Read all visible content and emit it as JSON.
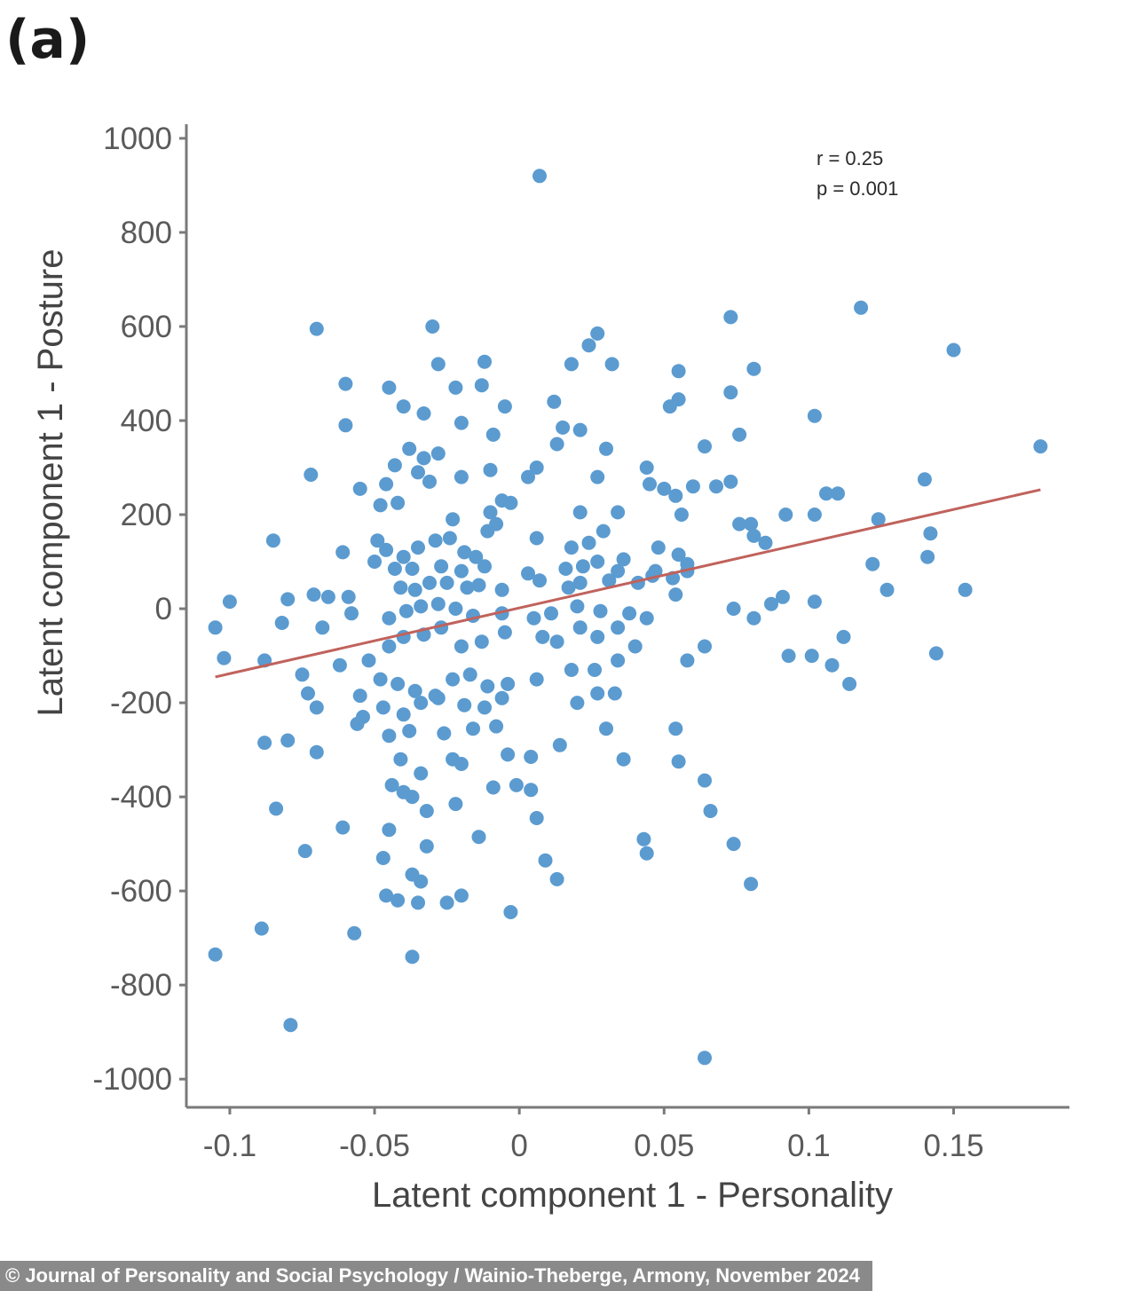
{
  "panel_label": "(a)",
  "credit": "© Journal of Personality and Social Psychology / Wainio-Theberge, Armony, November 2024",
  "chart_data": {
    "type": "scatter",
    "title": "",
    "xlabel": "Latent component 1 - Personality",
    "ylabel": "Latent component 1 - Posture",
    "xlim": [
      -0.115,
      0.19
    ],
    "ylim": [
      -1060,
      1030
    ],
    "x_ticks": [
      -0.1,
      -0.05,
      0,
      0.05,
      0.1,
      0.15
    ],
    "x_tick_labels": [
      "-0.1",
      "-0.05",
      "0",
      "0.05",
      "0.1",
      "0.15"
    ],
    "y_ticks": [
      1000,
      800,
      600,
      400,
      200,
      0,
      -200,
      -400,
      -600,
      -800,
      -1000
    ],
    "y_tick_labels": [
      "1000",
      "800",
      "600",
      "400",
      "200",
      "0",
      "-200",
      "-400",
      "-600",
      "-800",
      "-1000"
    ],
    "grid": false,
    "stats": [
      "r = 0.25",
      "p = 0.001"
    ],
    "point_color": "#5b9bd0",
    "line_color": "#c0625c",
    "regression_line": {
      "x": [
        -0.105,
        0.18
      ],
      "y": [
        -145,
        253
      ]
    },
    "points": [
      [
        0.007,
        920
      ],
      [
        -0.07,
        595
      ],
      [
        -0.03,
        600
      ],
      [
        0.073,
        620
      ],
      [
        0.118,
        640
      ],
      [
        0.15,
        550
      ],
      [
        0.027,
        585
      ],
      [
        0.024,
        560
      ],
      [
        0.032,
        520
      ],
      [
        -0.028,
        520
      ],
      [
        -0.012,
        525
      ],
      [
        0.018,
        520
      ],
      [
        0.055,
        505
      ],
      [
        0.081,
        510
      ],
      [
        -0.06,
        478
      ],
      [
        -0.045,
        470
      ],
      [
        -0.022,
        470
      ],
      [
        -0.013,
        475
      ],
      [
        0.012,
        440
      ],
      [
        0.055,
        445
      ],
      [
        0.073,
        460
      ],
      [
        -0.04,
        430
      ],
      [
        -0.033,
        415
      ],
      [
        -0.005,
        430
      ],
      [
        0.052,
        430
      ],
      [
        0.102,
        410
      ],
      [
        -0.06,
        390
      ],
      [
        -0.02,
        395
      ],
      [
        0.015,
        385
      ],
      [
        0.021,
        380
      ],
      [
        0.076,
        370
      ],
      [
        -0.009,
        370
      ],
      [
        -0.038,
        340
      ],
      [
        -0.033,
        320
      ],
      [
        -0.028,
        330
      ],
      [
        0.013,
        350
      ],
      [
        0.03,
        340
      ],
      [
        0.064,
        345
      ],
      [
        0.18,
        345
      ],
      [
        -0.043,
        305
      ],
      [
        -0.035,
        290
      ],
      [
        -0.02,
        280
      ],
      [
        0.006,
        300
      ],
      [
        0.027,
        280
      ],
      [
        0.044,
        300
      ],
      [
        -0.072,
        285
      ],
      [
        -0.055,
        255
      ],
      [
        -0.046,
        265
      ],
      [
        -0.031,
        270
      ],
      [
        -0.01,
        295
      ],
      [
        0.003,
        280
      ],
      [
        0.045,
        265
      ],
      [
        0.05,
        255
      ],
      [
        0.06,
        260
      ],
      [
        0.068,
        260
      ],
      [
        0.073,
        270
      ],
      [
        0.14,
        275
      ],
      [
        -0.048,
        220
      ],
      [
        -0.042,
        225
      ],
      [
        -0.023,
        190
      ],
      [
        -0.01,
        205
      ],
      [
        -0.006,
        230
      ],
      [
        -0.003,
        225
      ],
      [
        0.021,
        205
      ],
      [
        0.034,
        205
      ],
      [
        0.054,
        240
      ],
      [
        0.056,
        200
      ],
      [
        0.076,
        180
      ],
      [
        0.08,
        180
      ],
      [
        0.092,
        200
      ],
      [
        0.102,
        200
      ],
      [
        0.106,
        245
      ],
      [
        0.11,
        245
      ],
      [
        0.124,
        190
      ],
      [
        -0.049,
        145
      ],
      [
        -0.046,
        125
      ],
      [
        -0.04,
        110
      ],
      [
        -0.035,
        130
      ],
      [
        -0.029,
        145
      ],
      [
        -0.024,
        150
      ],
      [
        -0.019,
        120
      ],
      [
        -0.015,
        110
      ],
      [
        -0.011,
        165
      ],
      [
        -0.008,
        180
      ],
      [
        0.006,
        150
      ],
      [
        0.018,
        130
      ],
      [
        0.024,
        140
      ],
      [
        0.029,
        165
      ],
      [
        0.036,
        105
      ],
      [
        0.048,
        130
      ],
      [
        0.055,
        115
      ],
      [
        0.058,
        95
      ],
      [
        0.081,
        155
      ],
      [
        0.085,
        140
      ],
      [
        0.142,
        160
      ],
      [
        -0.085,
        145
      ],
      [
        -0.061,
        120
      ],
      [
        -0.05,
        100
      ],
      [
        -0.043,
        85
      ],
      [
        -0.037,
        85
      ],
      [
        -0.027,
        90
      ],
      [
        -0.02,
        80
      ],
      [
        -0.012,
        90
      ],
      [
        0.003,
        75
      ],
      [
        0.016,
        85
      ],
      [
        0.022,
        90
      ],
      [
        0.027,
        100
      ],
      [
        0.034,
        80
      ],
      [
        0.047,
        80
      ],
      [
        0.053,
        65
      ],
      [
        0.058,
        80
      ],
      [
        0.122,
        95
      ],
      [
        0.141,
        110
      ],
      [
        -0.1,
        15
      ],
      [
        -0.08,
        20
      ],
      [
        -0.071,
        30
      ],
      [
        -0.066,
        25
      ],
      [
        -0.059,
        25
      ],
      [
        -0.041,
        45
      ],
      [
        -0.036,
        40
      ],
      [
        -0.031,
        55
      ],
      [
        -0.025,
        55
      ],
      [
        -0.018,
        45
      ],
      [
        -0.014,
        50
      ],
      [
        -0.006,
        40
      ],
      [
        0.007,
        60
      ],
      [
        0.017,
        45
      ],
      [
        0.021,
        55
      ],
      [
        0.031,
        60
      ],
      [
        0.041,
        55
      ],
      [
        0.046,
        70
      ],
      [
        0.054,
        30
      ],
      [
        0.091,
        25
      ],
      [
        0.102,
        15
      ],
      [
        0.127,
        40
      ],
      [
        0.154,
        40
      ],
      [
        -0.105,
        -40
      ],
      [
        -0.082,
        -30
      ],
      [
        -0.068,
        -40
      ],
      [
        -0.058,
        -10
      ],
      [
        -0.045,
        -20
      ],
      [
        -0.039,
        -5
      ],
      [
        -0.034,
        5
      ],
      [
        -0.028,
        10
      ],
      [
        -0.022,
        0
      ],
      [
        -0.016,
        -15
      ],
      [
        -0.006,
        -10
      ],
      [
        0.005,
        -20
      ],
      [
        0.011,
        -10
      ],
      [
        0.02,
        5
      ],
      [
        0.028,
        -5
      ],
      [
        0.038,
        -10
      ],
      [
        0.044,
        -20
      ],
      [
        0.074,
        0
      ],
      [
        0.081,
        -20
      ],
      [
        0.087,
        10
      ],
      [
        -0.102,
        -105
      ],
      [
        -0.088,
        -110
      ],
      [
        -0.075,
        -140
      ],
      [
        -0.062,
        -120
      ],
      [
        -0.052,
        -110
      ],
      [
        -0.045,
        -80
      ],
      [
        -0.04,
        -60
      ],
      [
        -0.033,
        -55
      ],
      [
        -0.027,
        -40
      ],
      [
        -0.02,
        -80
      ],
      [
        -0.013,
        -70
      ],
      [
        -0.005,
        -50
      ],
      [
        0.008,
        -60
      ],
      [
        0.013,
        -70
      ],
      [
        0.021,
        -40
      ],
      [
        0.027,
        -60
      ],
      [
        0.034,
        -40
      ],
      [
        0.04,
        -80
      ],
      [
        0.058,
        -110
      ],
      [
        0.064,
        -80
      ],
      [
        0.093,
        -100
      ],
      [
        0.101,
        -100
      ],
      [
        0.108,
        -120
      ],
      [
        0.112,
        -60
      ],
      [
        0.144,
        -95
      ],
      [
        -0.073,
        -180
      ],
      [
        -0.055,
        -185
      ],
      [
        -0.048,
        -150
      ],
      [
        -0.042,
        -160
      ],
      [
        -0.036,
        -175
      ],
      [
        -0.029,
        -185
      ],
      [
        -0.023,
        -150
      ],
      [
        -0.017,
        -140
      ],
      [
        -0.011,
        -165
      ],
      [
        -0.004,
        -160
      ],
      [
        0.006,
        -150
      ],
      [
        0.018,
        -130
      ],
      [
        0.026,
        -130
      ],
      [
        0.034,
        -110
      ],
      [
        0.114,
        -160
      ],
      [
        -0.07,
        -210
      ],
      [
        -0.054,
        -230
      ],
      [
        -0.047,
        -210
      ],
      [
        -0.04,
        -225
      ],
      [
        -0.034,
        -200
      ],
      [
        -0.028,
        -190
      ],
      [
        -0.019,
        -205
      ],
      [
        -0.012,
        -210
      ],
      [
        -0.006,
        -190
      ],
      [
        0.02,
        -200
      ],
      [
        0.027,
        -180
      ],
      [
        0.033,
        -180
      ],
      [
        -0.088,
        -285
      ],
      [
        -0.08,
        -280
      ],
      [
        -0.07,
        -305
      ],
      [
        -0.056,
        -245
      ],
      [
        -0.045,
        -270
      ],
      [
        -0.038,
        -260
      ],
      [
        -0.026,
        -265
      ],
      [
        -0.016,
        -255
      ],
      [
        -0.008,
        -250
      ],
      [
        0.014,
        -290
      ],
      [
        0.03,
        -255
      ],
      [
        0.054,
        -255
      ],
      [
        -0.041,
        -320
      ],
      [
        -0.034,
        -350
      ],
      [
        -0.023,
        -320
      ],
      [
        -0.02,
        -330
      ],
      [
        -0.004,
        -310
      ],
      [
        0.004,
        -315
      ],
      [
        0.036,
        -320
      ],
      [
        0.055,
        -325
      ],
      [
        -0.084,
        -425
      ],
      [
        -0.061,
        -465
      ],
      [
        -0.044,
        -375
      ],
      [
        -0.04,
        -390
      ],
      [
        -0.037,
        -400
      ],
      [
        -0.032,
        -430
      ],
      [
        -0.022,
        -415
      ],
      [
        -0.009,
        -380
      ],
      [
        -0.001,
        -375
      ],
      [
        0.004,
        -385
      ],
      [
        0.006,
        -445
      ],
      [
        0.064,
        -365
      ],
      [
        0.066,
        -430
      ],
      [
        -0.074,
        -515
      ],
      [
        -0.047,
        -530
      ],
      [
        -0.045,
        -470
      ],
      [
        -0.032,
        -505
      ],
      [
        -0.014,
        -485
      ],
      [
        0.009,
        -535
      ],
      [
        0.013,
        -575
      ],
      [
        0.043,
        -490
      ],
      [
        0.044,
        -520
      ],
      [
        0.074,
        -500
      ],
      [
        -0.046,
        -610
      ],
      [
        -0.042,
        -620
      ],
      [
        -0.037,
        -565
      ],
      [
        -0.034,
        -580
      ],
      [
        -0.035,
        -625
      ],
      [
        -0.025,
        -625
      ],
      [
        -0.02,
        -610
      ],
      [
        -0.003,
        -645
      ],
      [
        0.08,
        -585
      ],
      [
        -0.089,
        -680
      ],
      [
        -0.057,
        -690
      ],
      [
        -0.037,
        -740
      ],
      [
        -0.105,
        -735
      ],
      [
        -0.079,
        -885
      ],
      [
        0.064,
        -955
      ]
    ]
  }
}
